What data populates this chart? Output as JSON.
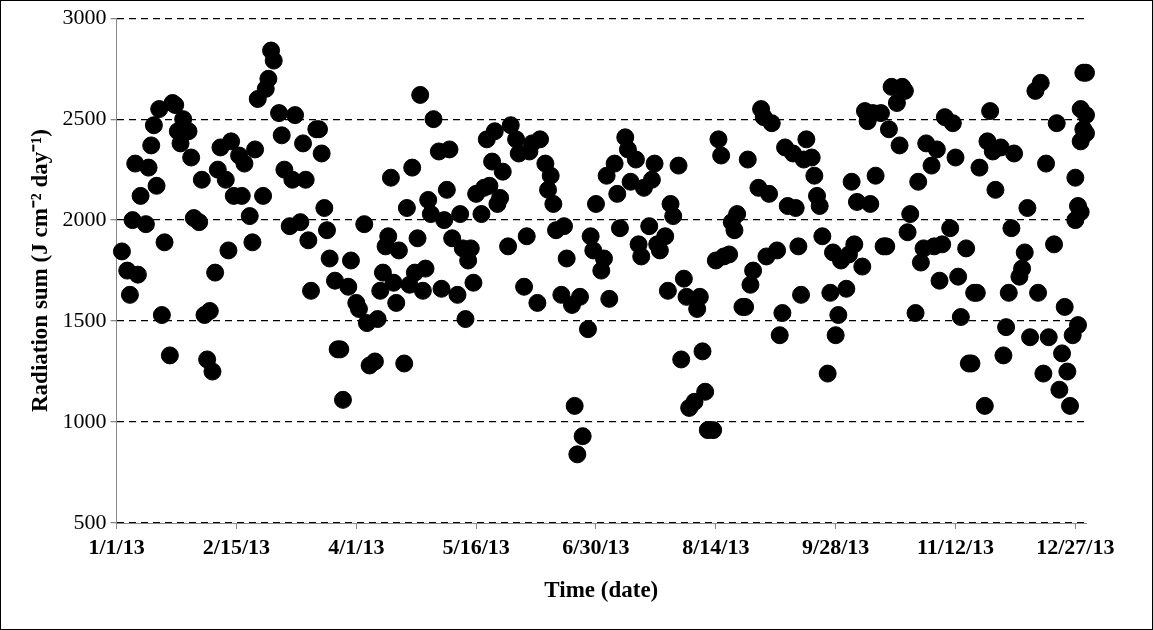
{
  "chart_data": {
    "type": "scatter",
    "xlabel": "Time (date)",
    "ylabel": "Radiation sum (J cm⁻² day⁻¹)",
    "color": "#000000",
    "marker": "circle",
    "grid": "y",
    "legend": false,
    "xlim": [
      "2013-01-01",
      "2013-12-31"
    ],
    "xticks": [
      {
        "value": "2013-01-01",
        "label": "1/1/13"
      },
      {
        "value": "2013-02-15",
        "label": "2/15/13"
      },
      {
        "value": "2013-04-01",
        "label": "4/1/13"
      },
      {
        "value": "2013-05-16",
        "label": "5/16/13"
      },
      {
        "value": "2013-06-30",
        "label": "6/30/13"
      },
      {
        "value": "2013-08-14",
        "label": "8/14/13"
      },
      {
        "value": "2013-09-28",
        "label": "9/28/13"
      },
      {
        "value": "2013-11-12",
        "label": "11/12/13"
      },
      {
        "value": "2013-12-27",
        "label": "12/27/13"
      }
    ],
    "ylim": [
      500,
      3000
    ],
    "yticks": [
      500,
      1000,
      1500,
      2000,
      2500,
      3000
    ],
    "x": [
      "2013-01-03",
      "2013-01-05",
      "2013-01-06",
      "2013-01-07",
      "2013-01-08",
      "2013-01-09",
      "2013-01-10",
      "2013-01-12",
      "2013-01-13",
      "2013-01-14",
      "2013-01-15",
      "2013-01-16",
      "2013-01-17",
      "2013-01-18",
      "2013-01-19",
      "2013-01-21",
      "2013-01-22",
      "2013-01-23",
      "2013-01-24",
      "2013-01-25",
      "2013-01-26",
      "2013-01-28",
      "2013-01-29",
      "2013-01-30",
      "2013-02-01",
      "2013-02-02",
      "2013-02-03",
      "2013-02-04",
      "2013-02-05",
      "2013-02-06",
      "2013-02-07",
      "2013-02-08",
      "2013-02-09",
      "2013-02-11",
      "2013-02-12",
      "2013-02-13",
      "2013-02-14",
      "2013-02-16",
      "2013-02-17",
      "2013-02-18",
      "2013-02-20",
      "2013-02-21",
      "2013-02-22",
      "2013-02-23",
      "2013-02-25",
      "2013-02-26",
      "2013-02-27",
      "2013-02-28",
      "2013-03-01",
      "2013-03-03",
      "2013-03-04",
      "2013-03-05",
      "2013-03-07",
      "2013-03-08",
      "2013-03-09",
      "2013-03-11",
      "2013-03-12",
      "2013-03-13",
      "2013-03-14",
      "2013-03-15",
      "2013-03-17",
      "2013-03-18",
      "2013-03-19",
      "2013-03-20",
      "2013-03-21",
      "2013-03-22",
      "2013-03-24",
      "2013-03-25",
      "2013-03-26",
      "2013-03-27",
      "2013-03-29",
      "2013-03-30",
      "2013-04-01",
      "2013-04-02",
      "2013-04-04",
      "2013-04-05",
      "2013-04-06",
      "2013-04-08",
      "2013-04-09",
      "2013-04-10",
      "2013-04-11",
      "2013-04-12",
      "2013-04-13",
      "2013-04-14",
      "2013-04-15",
      "2013-04-16",
      "2013-04-17",
      "2013-04-19",
      "2013-04-20",
      "2013-04-21",
      "2013-04-22",
      "2013-04-23",
      "2013-04-24",
      "2013-04-25",
      "2013-04-26",
      "2013-04-27",
      "2013-04-28",
      "2013-04-29",
      "2013-04-30",
      "2013-05-02",
      "2013-05-03",
      "2013-05-04",
      "2013-05-05",
      "2013-05-06",
      "2013-05-07",
      "2013-05-09",
      "2013-05-10",
      "2013-05-11",
      "2013-05-12",
      "2013-05-13",
      "2013-05-14",
      "2013-05-15",
      "2013-05-16",
      "2013-05-18",
      "2013-05-19",
      "2013-05-20",
      "2013-05-21",
      "2013-05-22",
      "2013-05-23",
      "2013-05-24",
      "2013-05-25",
      "2013-05-26",
      "2013-05-28",
      "2013-05-29",
      "2013-05-31",
      "2013-06-01",
      "2013-06-03",
      "2013-06-04",
      "2013-06-05",
      "2013-06-06",
      "2013-06-08",
      "2013-06-09",
      "2013-06-11",
      "2013-06-12",
      "2013-06-13",
      "2013-06-14",
      "2013-06-15",
      "2013-06-17",
      "2013-06-18",
      "2013-06-19",
      "2013-06-21",
      "2013-06-22",
      "2013-06-23",
      "2013-06-24",
      "2013-06-25",
      "2013-06-27",
      "2013-06-28",
      "2013-06-29",
      "2013-06-30",
      "2013-07-02",
      "2013-07-03",
      "2013-07-04",
      "2013-07-05",
      "2013-07-07",
      "2013-07-08",
      "2013-07-09",
      "2013-07-11",
      "2013-07-12",
      "2013-07-13",
      "2013-07-15",
      "2013-07-16",
      "2013-07-17",
      "2013-07-18",
      "2013-07-20",
      "2013-07-21",
      "2013-07-22",
      "2013-07-23",
      "2013-07-24",
      "2013-07-26",
      "2013-07-27",
      "2013-07-28",
      "2013-07-29",
      "2013-07-31",
      "2013-08-01",
      "2013-08-02",
      "2013-08-03",
      "2013-08-04",
      "2013-08-06",
      "2013-08-07",
      "2013-08-08",
      "2013-08-09",
      "2013-08-10",
      "2013-08-11",
      "2013-08-13",
      "2013-08-14",
      "2013-08-15",
      "2013-08-16",
      "2013-08-17",
      "2013-08-19",
      "2013-08-20",
      "2013-08-21",
      "2013-08-22",
      "2013-08-24",
      "2013-08-25",
      "2013-08-26",
      "2013-08-27",
      "2013-08-28",
      "2013-08-30",
      "2013-08-31",
      "2013-09-01",
      "2013-09-02",
      "2013-09-03",
      "2013-09-04",
      "2013-09-06",
      "2013-09-07",
      "2013-09-08",
      "2013-09-09",
      "2013-09-10",
      "2013-09-12",
      "2013-09-13",
      "2013-09-14",
      "2013-09-15",
      "2013-09-16",
      "2013-09-17",
      "2013-09-19",
      "2013-09-20",
      "2013-09-21",
      "2013-09-22",
      "2013-09-23",
      "2013-09-25",
      "2013-09-26",
      "2013-09-27",
      "2013-09-28",
      "2013-09-29",
      "2013-09-30",
      "2013-10-02",
      "2013-10-03",
      "2013-10-04",
      "2013-10-05",
      "2013-10-06",
      "2013-10-08",
      "2013-10-09",
      "2013-10-10",
      "2013-10-11",
      "2013-10-12",
      "2013-10-13",
      "2013-10-15",
      "2013-10-16",
      "2013-10-17",
      "2013-10-18",
      "2013-10-19",
      "2013-10-21",
      "2013-10-22",
      "2013-10-23",
      "2013-10-24",
      "2013-10-25",
      "2013-10-26",
      "2013-10-28",
      "2013-10-29",
      "2013-10-30",
      "2013-10-31",
      "2013-11-01",
      "2013-11-03",
      "2013-11-04",
      "2013-11-05",
      "2013-11-06",
      "2013-11-07",
      "2013-11-08",
      "2013-11-10",
      "2013-11-11",
      "2013-11-12",
      "2013-11-13",
      "2013-11-14",
      "2013-11-16",
      "2013-11-17",
      "2013-11-18",
      "2013-11-19",
      "2013-11-20",
      "2013-11-21",
      "2013-11-23",
      "2013-11-24",
      "2013-11-25",
      "2013-11-26",
      "2013-11-27",
      "2013-11-29",
      "2013-11-30",
      "2013-12-01",
      "2013-12-02",
      "2013-12-03",
      "2013-12-04",
      "2013-12-06",
      "2013-12-07",
      "2013-12-08",
      "2013-12-09",
      "2013-12-10",
      "2013-12-12",
      "2013-12-13",
      "2013-12-14",
      "2013-12-15",
      "2013-12-16",
      "2013-12-17",
      "2013-12-19",
      "2013-12-20",
      "2013-12-21",
      "2013-12-22",
      "2013-12-23",
      "2013-12-24",
      "2013-12-25",
      "2013-12-26",
      "2013-12-27",
      "2013-12-27",
      "2013-12-28",
      "2013-12-28",
      "2013-12-29",
      "2013-12-29",
      "2013-12-29",
      "2013-12-30",
      "2013-12-30",
      "2013-12-31",
      "2013-12-31",
      "2013-12-31"
    ],
    "values": [
      1845,
      1750,
      1630,
      2000,
      2280,
      1730,
      2120,
      1980,
      2260,
      2370,
      2470,
      2170,
      2550,
      1530,
      1890,
      1330,
      2580,
      2570,
      2440,
      2380,
      2500,
      2440,
      2310,
      2010,
      1990,
      2200,
      1530,
      1310,
      1550,
      1250,
      1740,
      2250,
      2360,
      2200,
      1850,
      2390,
      2120,
      2320,
      2120,
      2280,
      2020,
      1890,
      2350,
      2600,
      2120,
      2650,
      2700,
      2840,
      2790,
      2530,
      2420,
      2250,
      1970,
      2200,
      2520,
      1990,
      2380,
      2200,
      1900,
      1650,
      2450,
      2450,
      2330,
      2060,
      1950,
      1810,
      1700,
      1360,
      1360,
      1110,
      1670,
      1800,
      1590,
      1560,
      1980,
      1490,
      1280,
      1300,
      1510,
      1650,
      1740,
      1870,
      1920,
      2210,
      1690,
      1590,
      1850,
      1290,
      2060,
      1680,
      2260,
      1740,
      1910,
      2620,
      1650,
      1760,
      2100,
      2030,
      2500,
      2340,
      1660,
      2000,
      2150,
      2350,
      1910,
      1630,
      2030,
      1860,
      1510,
      1800,
      1860,
      1690,
      2130,
      2030,
      2160,
      2400,
      2170,
      2290,
      2440,
      2080,
      2110,
      2240,
      1870,
      2470,
      2400,
      2330,
      1670,
      1920,
      2340,
      2380,
      1590,
      2400,
      2280,
      2150,
      2220,
      2080,
      1950,
      1630,
      1970,
      1810,
      1580,
      1080,
      840,
      1620,
      930,
      1460,
      1920,
      1850,
      2080,
      1750,
      1810,
      2220,
      1610,
      2280,
      2130,
      1960,
      2410,
      2350,
      2190,
      2300,
      1880,
      1820,
      2160,
      1970,
      2200,
      2280,
      1880,
      1850,
      1920,
      1650,
      2080,
      2020,
      2270,
      1310,
      1710,
      1620,
      1070,
      1100,
      1560,
      1620,
      1350,
      1150,
      960,
      960,
      1800,
      2400,
      2320,
      1820,
      1830,
      1990,
      1950,
      2030,
      1570,
      1570,
      2300,
      1680,
      1750,
      2160,
      2550,
      2510,
      1820,
      2130,
      2480,
      1850,
      1430,
      1540,
      2360,
      2070,
      2330,
      2060,
      1870,
      1630,
      2300,
      2400,
      2310,
      2220,
      2120,
      2070,
      1920,
      1240,
      1640,
      1840,
      1430,
      1530,
      1800,
      1660,
      1830,
      2190,
      1880,
      2090,
      1770,
      2540,
      2490,
      2080,
      2530,
      2220,
      2530,
      1870,
      1870,
      2450,
      2660,
      2580,
      2370,
      2660,
      2640,
      1940,
      2030,
      1540,
      2190,
      1790,
      1860,
      2380,
      2270,
      1870,
      2350,
      1700,
      1880,
      2510,
      1960,
      2480,
      2310,
      1720,
      1520,
      1860,
      1290,
      1290,
      1640,
      1640,
      2260,
      1080,
      2390,
      2540,
      2340,
      2150,
      2360,
      1330,
      1470,
      1640,
      1960,
      2330,
      1720,
      1760,
      1840,
      2060,
      1420,
      2640,
      1640,
      2680,
      1240,
      2280,
      1420,
      1880,
      2480,
      1160,
      1340,
      1570,
      1250,
      1080,
      1430,
      2000,
      2210,
      1480,
      2070,
      2040,
      2390,
      2550,
      2450,
      2730,
      2430,
      2730,
      2520
    ]
  }
}
